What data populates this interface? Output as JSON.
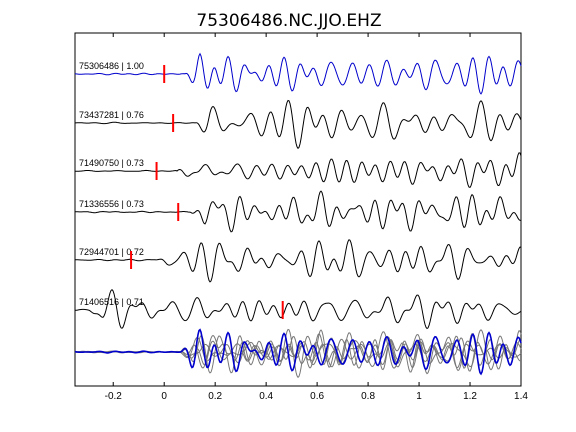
{
  "chart_data": {
    "type": "line",
    "title": "75306486.NC.JJO.EHZ",
    "xlabel": "",
    "ylabel": "",
    "xlim": [
      -0.35,
      1.4
    ],
    "xticks": [
      -0.2,
      0,
      0.2,
      0.4,
      0.6,
      0.8,
      1,
      1.2,
      1.4
    ],
    "xtick_labels": [
      "-0.2",
      "0",
      "0.2",
      "0.4",
      "0.6",
      "0.8",
      "1",
      "1.2",
      "1.4"
    ],
    "grid": false,
    "legend": "none",
    "colors": {
      "primary": "#0000cc",
      "trace": "#000000",
      "overlay": "#777777",
      "pick": "#ff0000"
    },
    "series": [
      {
        "label": "75306486 | 1.00",
        "pick_time": 0.0,
        "onset": 0.08,
        "amplitude": 1.0,
        "primary": true
      },
      {
        "label": "73437281 | 0.76",
        "pick_time": 0.035,
        "onset": 0.12,
        "amplitude": 1.05,
        "primary": false
      },
      {
        "label": "71490750 | 0.73",
        "pick_time": -0.03,
        "onset": 0.05,
        "amplitude": 0.9,
        "primary": false
      },
      {
        "label": "71336556 | 0.73",
        "pick_time": 0.055,
        "onset": 0.1,
        "amplitude": 1.0,
        "primary": false
      },
      {
        "label": "72944701 | 0.72",
        "pick_time": -0.13,
        "onset": -0.05,
        "amplitude": 1.1,
        "primary": false
      },
      {
        "label": "71406516 | 0.71",
        "pick_time": 0.465,
        "onset": -0.3,
        "amplitude": 0.9,
        "primary": false
      }
    ]
  }
}
